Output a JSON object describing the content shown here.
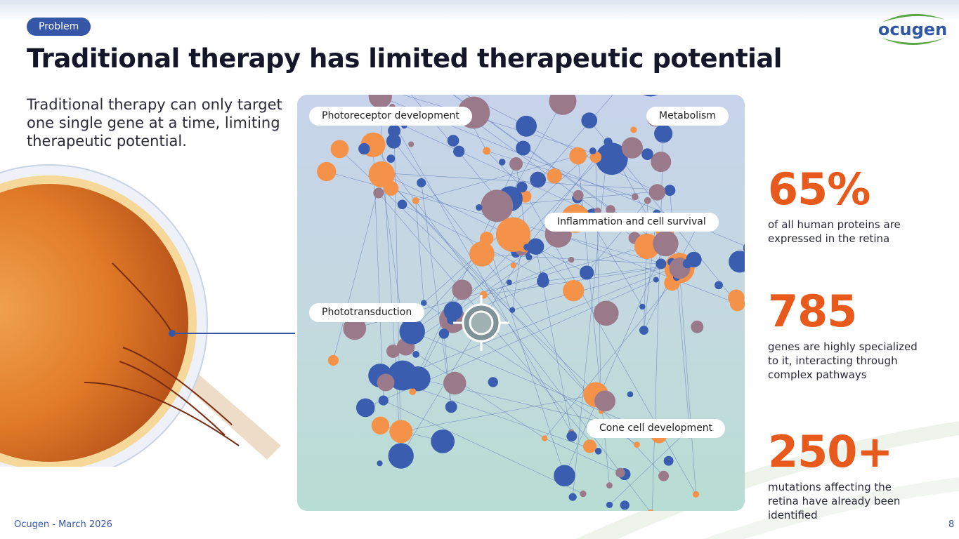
{
  "badge": "Problem",
  "title": "Traditional therapy has limited therapeutic potential",
  "logo_text": "ocugen",
  "intro": "Traditional therapy can only target one single gene at a time, limiting therapeutic potential.",
  "network_labels": {
    "photoreceptor": "Photoreceptor development",
    "metabolism": "Metabolism",
    "inflammation": "Inflammation and cell survival",
    "phototransduction": "Phototransduction",
    "cone": "Cone cell development"
  },
  "stats": [
    {
      "value": "65%",
      "desc": "of all human proteins are expressed in the retina"
    },
    {
      "value": "785",
      "desc": "genes are highly specialized to it, interacting through complex pathways"
    },
    {
      "value": "250+",
      "desc": "mutations affecting the retina have already been identified"
    }
  ],
  "footer": "Ocugen - March 2026",
  "page": "8",
  "colors": {
    "accent": "#e8591c",
    "brand": "#3657a8",
    "node_blue": "#3a5db0",
    "node_orange": "#f5924a"
  }
}
